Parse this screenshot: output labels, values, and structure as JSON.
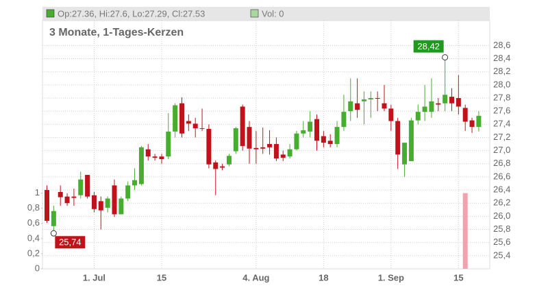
{
  "chart_data": {
    "type": "candlestick",
    "header": {
      "ohlc": "Op:27.36, Hi:27.6, Lo:27.29, Cl:27.53",
      "volume": "Vol: 0"
    },
    "subtitle": "3 Monate, 1-Tages-Kerzen",
    "categories": [
      null,
      null,
      null,
      null,
      null,
      null,
      null,
      "1. Jul",
      null,
      null,
      null,
      null,
      null,
      null,
      null,
      null,
      null,
      "15",
      null,
      null,
      null,
      null,
      null,
      null,
      null,
      null,
      null,
      null,
      null,
      null,
      null,
      "4. Aug",
      null,
      null,
      null,
      null,
      null,
      null,
      null,
      null,
      null,
      "18",
      null,
      null,
      null,
      null,
      null,
      null,
      null,
      null,
      null,
      "1. Sep",
      null,
      null,
      null,
      null,
      null,
      null,
      null,
      null,
      null,
      "15",
      null,
      null,
      null
    ],
    "open": [
      26.4,
      25.85,
      26.37,
      26.3,
      26.3,
      26.32,
      26.63,
      26.32,
      26.23,
      26.13,
      26.47,
      26.03,
      26.27,
      26.47,
      26.49,
      27.02,
      26.91,
      26.91,
      26.91,
      27.29,
      27.72,
      27.45,
      27.41,
      27.34,
      27.33,
      26.82,
      26.76,
      26.79,
      26.99,
      27.67,
      27.36,
      27.04,
      27.05,
      27.1,
      27.1,
      26.94,
      26.91,
      27.02,
      27.26,
      27.29,
      27.48,
      27.22,
      27.15,
      27.1,
      27.36,
      27.6,
      27.72,
      27.75,
      27.78,
      27.8,
      27.72,
      27.64,
      27.45,
      26.79,
      26.84,
      27.46,
      27.59,
      27.59,
      27.72,
      27.72,
      27.82,
      27.8,
      27.65,
      27.46,
      27.36
    ],
    "high": [
      26.47,
      26.16,
      26.47,
      26.35,
      26.42,
      26.68,
      26.63,
      26.37,
      26.3,
      26.3,
      26.56,
      26.3,
      26.53,
      26.73,
      27.07,
      27.1,
      26.95,
      26.95,
      27.57,
      27.72,
      27.81,
      27.55,
      27.5,
      27.64,
      27.4,
      26.85,
      26.8,
      26.95,
      27.36,
      27.7,
      27.45,
      27.3,
      27.35,
      27.31,
      27.2,
      27.0,
      27.1,
      27.3,
      27.45,
      27.6,
      27.55,
      27.3,
      27.25,
      27.45,
      27.85,
      28.1,
      28.1,
      27.9,
      27.9,
      27.9,
      28.0,
      27.7,
      27.5,
      27.12,
      27.5,
      27.7,
      28.0,
      28.1,
      27.8,
      28.42,
      27.95,
      28.15,
      27.7,
      27.5,
      27.6
    ],
    "low": [
      25.9,
      25.74,
      26.16,
      26.16,
      26.16,
      26.27,
      26.27,
      26.06,
      25.8,
      26.06,
      25.99,
      26.03,
      26.23,
      26.4,
      26.47,
      26.85,
      26.85,
      26.8,
      26.87,
      27.2,
      27.2,
      27.3,
      27.2,
      27.3,
      26.73,
      26.32,
      26.7,
      26.76,
      26.95,
      27.0,
      26.8,
      26.8,
      26.95,
      26.94,
      26.84,
      26.84,
      26.88,
      27.0,
      27.2,
      27.2,
      27.0,
      27.05,
      27.05,
      27.05,
      27.3,
      27.45,
      27.5,
      27.4,
      27.5,
      27.6,
      27.6,
      27.3,
      26.72,
      26.6,
      26.84,
      27.4,
      27.45,
      27.5,
      27.6,
      27.6,
      27.6,
      27.55,
      27.3,
      27.27,
      27.29
    ],
    "close": [
      25.93,
      26.08,
      26.29,
      26.2,
      26.28,
      26.56,
      26.3,
      26.11,
      26.09,
      26.27,
      26.03,
      26.27,
      26.47,
      26.55,
      27.05,
      26.91,
      26.89,
      26.87,
      27.29,
      27.69,
      27.26,
      27.41,
      27.34,
      27.33,
      26.79,
      26.72,
      26.74,
      26.92,
      27.34,
      27.07,
      27.03,
      27.02,
      27.03,
      27.05,
      26.88,
      26.89,
      27.02,
      27.26,
      27.31,
      27.44,
      27.15,
      27.12,
      27.1,
      27.36,
      27.59,
      27.75,
      27.62,
      27.78,
      27.8,
      27.79,
      27.64,
      27.45,
      26.94,
      27.12,
      27.46,
      27.59,
      27.67,
      27.75,
      27.7,
      27.85,
      27.72,
      27.67,
      27.44,
      27.36,
      27.53
    ],
    "volume": {
      "axis": "y2",
      "color": "#f0a3ae",
      "values": [
        0,
        0,
        0,
        0,
        0,
        0,
        0,
        0,
        0,
        0,
        0,
        0,
        0,
        0,
        0,
        0,
        0,
        0,
        0,
        0,
        0,
        0,
        0,
        0,
        0,
        0,
        0,
        0,
        0,
        0,
        0,
        0,
        0,
        0,
        0,
        0,
        0,
        0,
        0,
        0,
        0,
        0,
        0,
        0,
        0,
        0,
        0,
        0,
        0,
        0,
        0,
        0,
        0,
        0,
        0,
        0,
        0,
        0,
        0,
        0,
        0,
        0,
        1,
        0,
        0
      ]
    },
    "up_color": "#46ad2f",
    "down_color": "#c0121a",
    "ylim": [
      25.2,
      28.98
    ],
    "yticks": [
      {
        "value": 25.4,
        "label": "25,4"
      },
      {
        "value": 25.6,
        "label": "25,6"
      },
      {
        "value": 25.8,
        "label": "25,8"
      },
      {
        "value": 26.0,
        "label": "26,0"
      },
      {
        "value": 26.2,
        "label": "26,2"
      },
      {
        "value": 26.4,
        "label": "26,4"
      },
      {
        "value": 26.6,
        "label": "26,6"
      },
      {
        "value": 26.8,
        "label": "26,8"
      },
      {
        "value": 27.0,
        "label": "27,0"
      },
      {
        "value": 27.2,
        "label": "27,2"
      },
      {
        "value": 27.4,
        "label": "27,4"
      },
      {
        "value": 27.6,
        "label": "27,6"
      },
      {
        "value": 27.8,
        "label": "27,8"
      },
      {
        "value": 28.0,
        "label": "28,0"
      },
      {
        "value": 28.2,
        "label": "28,2"
      },
      {
        "value": 28.4,
        "label": "28,4"
      },
      {
        "value": 28.6,
        "label": "28,6"
      }
    ],
    "y2lim": [
      0,
      3.28
    ],
    "y2ticks": [
      0,
      {
        "value": 0.2,
        "label": "0,2"
      },
      {
        "value": 0.4,
        "label": "0,4"
      },
      {
        "value": 0.6,
        "label": "0,6"
      },
      {
        "value": 0.8,
        "label": "0,8"
      },
      1
    ],
    "grid": true,
    "annotations": [
      {
        "label": "28,42",
        "value": 28.42,
        "index": 59,
        "color": "#1f9a1f"
      },
      {
        "label": "25,74",
        "value": 25.74,
        "index": 1,
        "color": "#c0121a"
      }
    ]
  }
}
